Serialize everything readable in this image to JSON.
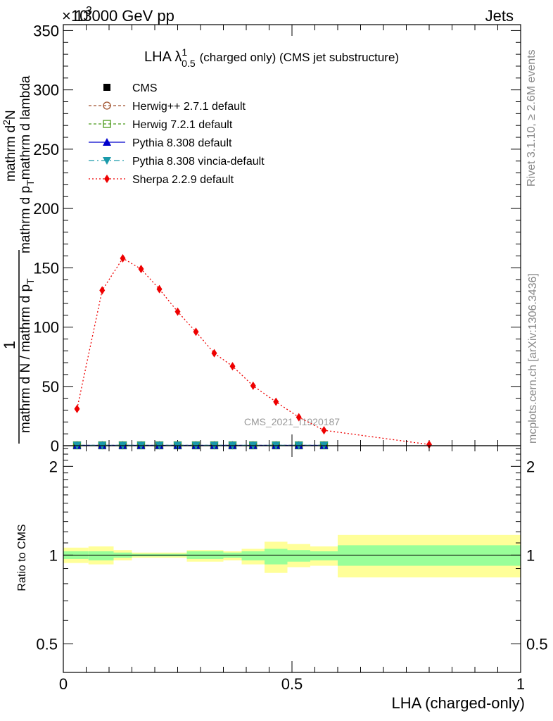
{
  "header": {
    "left": "13000 GeV pp",
    "right": "Jets",
    "multiplier": "×10",
    "multiplier_exponent": "3"
  },
  "side_text": {
    "rivet": "Rivet 3.1.10, ≥ 2.6M events",
    "mcplots": "mcplots.cern.ch [arXiv:1306.3436]"
  },
  "watermark": "CMS_2021_I1920187",
  "chart_data": [
    {
      "type": "line",
      "title": "LHA λ",
      "title_superscript": "1",
      "title_subscript": "0.5",
      "title_suffix": "(charged only) (CMS jet substructure)",
      "ylabel": "1 / (mathrm d N / mathrm d p_T) · mathrm d²N / (mathrm d p_T mathrm d lambda)",
      "ylabel_fraction": {
        "numerator_one": "1",
        "denominator_one": "mathrm d N / mathrm d p",
        "numerator_two": "mathrm d",
        "numerator_two_super": "2",
        "numerator_two_tail": "N",
        "denominator_two": "mathrm d p",
        "denominator_two_tail": "mathrm d lambda",
        "subscript": "T"
      },
      "xlim": [
        0,
        1
      ],
      "ylim": [
        0,
        355
      ],
      "yticks": [
        0,
        50,
        100,
        150,
        200,
        250,
        300,
        350
      ],
      "ytick_labels": [
        "0",
        "50",
        "100",
        "150",
        "200",
        "250",
        "300",
        "350"
      ],
      "grid": false,
      "legend_position": "top-left",
      "colors": {
        "cms": "#000000",
        "herwigpp": "#a0522d",
        "herwig7": "#4a9a1a",
        "pythia": "#0000cc",
        "vincia": "#1a9aaa",
        "sherpa": "#ee0000"
      },
      "series": [
        {
          "name": "CMS",
          "marker": "square",
          "x": [
            0.03,
            0.085,
            0.13,
            0.17,
            0.21,
            0.25,
            0.29,
            0.33,
            0.37,
            0.415,
            0.465,
            0.515,
            0.57
          ],
          "y": [
            0.3,
            0.3,
            0.3,
            0.3,
            0.3,
            0.3,
            0.3,
            0.3,
            0.3,
            0.3,
            0.3,
            0.3,
            0.3
          ]
        },
        {
          "name": "Herwig++ 2.7.1 default",
          "marker": "open-circle",
          "x": [
            0.03,
            0.085,
            0.13,
            0.17,
            0.21,
            0.25,
            0.29,
            0.33,
            0.37,
            0.415,
            0.465,
            0.515,
            0.57
          ],
          "y": [
            0.3,
            0.3,
            0.3,
            0.3,
            0.3,
            0.3,
            0.3,
            0.3,
            0.3,
            0.3,
            0.3,
            0.3,
            0.3
          ]
        },
        {
          "name": "Herwig 7.2.1 default",
          "marker": "open-square",
          "x": [
            0.03,
            0.085,
            0.13,
            0.17,
            0.21,
            0.25,
            0.29,
            0.33,
            0.37,
            0.415,
            0.465,
            0.515,
            0.57
          ],
          "y": [
            0.3,
            0.3,
            0.3,
            0.3,
            0.3,
            0.3,
            0.3,
            0.3,
            0.3,
            0.3,
            0.3,
            0.3,
            0.3
          ]
        },
        {
          "name": "Pythia 8.308 default",
          "marker": "triangle-up",
          "x": [
            0.03,
            0.085,
            0.13,
            0.17,
            0.21,
            0.25,
            0.29,
            0.33,
            0.37,
            0.415,
            0.465,
            0.515,
            0.57
          ],
          "y": [
            0.3,
            0.3,
            0.3,
            0.3,
            0.3,
            0.3,
            0.3,
            0.3,
            0.3,
            0.3,
            0.3,
            0.3,
            0.3
          ]
        },
        {
          "name": "Pythia 8.308 vincia-default",
          "marker": "triangle-down",
          "x": [
            0.03,
            0.085,
            0.13,
            0.17,
            0.21,
            0.25,
            0.29,
            0.33,
            0.37,
            0.415,
            0.465,
            0.515,
            0.57
          ],
          "y": [
            0.3,
            0.3,
            0.3,
            0.3,
            0.3,
            0.3,
            0.3,
            0.3,
            0.3,
            0.3,
            0.3,
            0.3,
            0.3
          ]
        },
        {
          "name": "Sherpa 2.2.9 default",
          "marker": "diamond",
          "x": [
            0.03,
            0.085,
            0.13,
            0.17,
            0.21,
            0.25,
            0.29,
            0.33,
            0.37,
            0.415,
            0.465,
            0.515,
            0.57,
            0.8
          ],
          "y": [
            31,
            131,
            158,
            149,
            132,
            113,
            96,
            78,
            67,
            50.5,
            37,
            24,
            13,
            1
          ]
        }
      ]
    },
    {
      "type": "area",
      "ylabel": "Ratio to CMS",
      "xlabel": "LHA (charged-only)",
      "xlim": [
        0,
        1
      ],
      "xticks": [
        0,
        0.5,
        1
      ],
      "xtick_labels": [
        "0",
        "0.5",
        "1"
      ],
      "ylim": [
        0.4,
        2.35
      ],
      "yscale": "log",
      "yticks": [
        0.5,
        1,
        2
      ],
      "ytick_labels": [
        "0.5",
        "1",
        "2"
      ],
      "reference_line": 1,
      "colors": {
        "inner_band": "#99ff99",
        "outer_band": "#ffff99",
        "reference": "#000000"
      },
      "bins": [
        {
          "x": [
            0.0,
            0.055
          ],
          "inner": [
            0.97,
            1.03
          ],
          "outer": [
            0.94,
            1.06
          ]
        },
        {
          "x": [
            0.055,
            0.11
          ],
          "inner": [
            0.96,
            1.03
          ],
          "outer": [
            0.93,
            1.07
          ]
        },
        {
          "x": [
            0.11,
            0.15
          ],
          "inner": [
            0.98,
            1.02
          ],
          "outer": [
            0.96,
            1.04
          ]
        },
        {
          "x": [
            0.15,
            0.19
          ],
          "inner": [
            0.99,
            1.01
          ],
          "outer": [
            0.98,
            1.02
          ]
        },
        {
          "x": [
            0.19,
            0.23
          ],
          "inner": [
            0.99,
            1.01
          ],
          "outer": [
            0.98,
            1.02
          ]
        },
        {
          "x": [
            0.23,
            0.27
          ],
          "inner": [
            0.99,
            1.01
          ],
          "outer": [
            0.98,
            1.02
          ]
        },
        {
          "x": [
            0.27,
            0.31
          ],
          "inner": [
            0.97,
            1.03
          ],
          "outer": [
            0.95,
            1.04
          ]
        },
        {
          "x": [
            0.31,
            0.35
          ],
          "inner": [
            0.97,
            1.03
          ],
          "outer": [
            0.95,
            1.04
          ]
        },
        {
          "x": [
            0.35,
            0.39
          ],
          "inner": [
            0.98,
            1.02
          ],
          "outer": [
            0.96,
            1.03
          ]
        },
        {
          "x": [
            0.39,
            0.44
          ],
          "inner": [
            0.96,
            1.03
          ],
          "outer": [
            0.93,
            1.05
          ]
        },
        {
          "x": [
            0.44,
            0.49
          ],
          "inner": [
            0.93,
            1.05
          ],
          "outer": [
            0.87,
            1.11
          ]
        },
        {
          "x": [
            0.49,
            0.54
          ],
          "inner": [
            0.95,
            1.04
          ],
          "outer": [
            0.91,
            1.09
          ]
        },
        {
          "x": [
            0.54,
            0.6
          ],
          "inner": [
            0.96,
            1.03
          ],
          "outer": [
            0.92,
            1.07
          ]
        },
        {
          "x": [
            0.6,
            1.0
          ],
          "inner": [
            0.92,
            1.08
          ],
          "outer": [
            0.84,
            1.17
          ]
        }
      ]
    }
  ]
}
